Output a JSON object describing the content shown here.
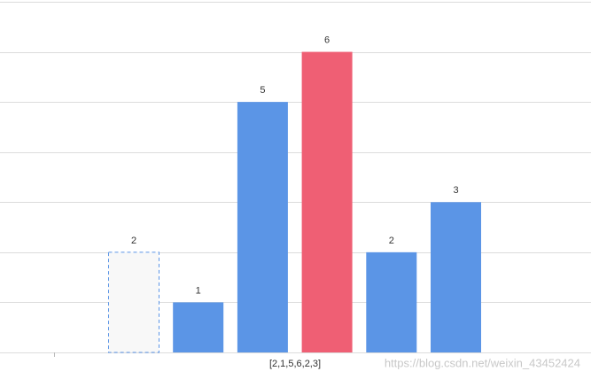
{
  "chart_data": {
    "type": "bar",
    "categories": [
      null,
      null,
      null,
      null,
      null,
      null
    ],
    "values": [
      2,
      1,
      5,
      6,
      2,
      3
    ],
    "colors": [
      "#f8f8f8",
      "#5b95e6",
      "#5b95e6",
      "#ef5f74",
      "#5b95e6",
      "#5b95e6"
    ],
    "dashed": [
      true,
      false,
      false,
      false,
      false,
      false
    ],
    "ylim": [
      0,
      7
    ],
    "yticks": [
      0,
      1,
      2,
      3,
      4,
      5,
      6,
      7
    ],
    "grid": true,
    "xlabel": "[2,1,5,6,2,3]",
    "watermark": "https://blog.csdn.net/weixin_43452424"
  }
}
